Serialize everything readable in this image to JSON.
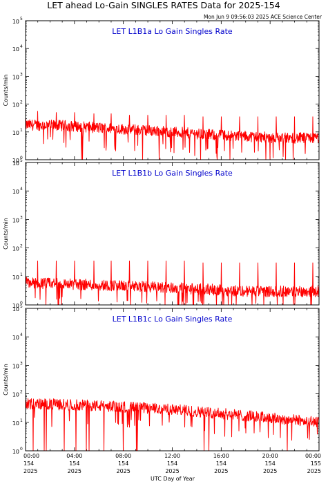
{
  "header": {
    "title": "LET ahead Lo-Gain SINGLES RATES Data for 2025-154",
    "timestamp": "Mon Jun  9 09:56:03 2025 ACE Science Center"
  },
  "colors": {
    "trace": "#ff0000",
    "panel_title": "#0000cc",
    "axes": "#000000",
    "background": "#ffffff"
  },
  "chart_data": [
    {
      "type": "line",
      "title": "LET L1B1a Lo Gain Singles Rate",
      "ylabel": "Counts/min",
      "xlabel": "",
      "yscale": "log",
      "ylim": [
        1,
        100000
      ],
      "xlim": [
        0,
        24
      ],
      "ytick_labels": [
        {
          "base": "10",
          "exp": "0"
        },
        {
          "base": "10",
          "exp": "1"
        },
        {
          "base": "10",
          "exp": "2"
        },
        {
          "base": "10",
          "exp": "3"
        },
        {
          "base": "10",
          "exp": "4"
        },
        {
          "base": "10",
          "exp": "5"
        }
      ],
      "series": [
        {
          "baseline": {
            "x": [
              0,
              3,
              6,
              9,
              12,
              15,
              18,
              21,
              24
            ],
            "y": [
              18,
              17,
              14,
              12,
              10,
              8,
              7,
              6,
              6
            ]
          },
          "spikes": {
            "x": [
              1.0,
              2.5,
              4.0,
              5.6,
              7.0,
              8.5,
              10.0,
              11.5,
              13.0,
              14.5,
              16.0,
              17.5,
              19.0,
              20.5,
              22.0,
              23.5
            ],
            "y": [
              55,
              50,
              50,
              45,
              45,
              40,
              40,
              40,
              40,
              35,
              35,
              35,
              35,
              35,
              35,
              35
            ]
          }
        }
      ]
    },
    {
      "type": "line",
      "title": "LET L1B1b Lo Gain Singles Rate",
      "ylabel": "Counts/min",
      "xlabel": "",
      "yscale": "log",
      "ylim": [
        1,
        100000
      ],
      "xlim": [
        0,
        24
      ],
      "ytick_labels": [
        {
          "base": "10",
          "exp": "0"
        },
        {
          "base": "10",
          "exp": "1"
        },
        {
          "base": "10",
          "exp": "2"
        },
        {
          "base": "10",
          "exp": "3"
        },
        {
          "base": "10",
          "exp": "4"
        },
        {
          "base": "10",
          "exp": "5"
        }
      ],
      "series": [
        {
          "baseline": {
            "x": [
              0,
              6,
              12,
              18,
              24
            ],
            "y": [
              6,
              5,
              4,
              3,
              3
            ]
          },
          "spikes": {
            "x": [
              1.0,
              2.5,
              4.0,
              5.6,
              7.0,
              8.5,
              10.0,
              11.5,
              13.0,
              14.5,
              16.0,
              17.5,
              19.0,
              20.5,
              22.0,
              23.5
            ],
            "y": [
              35,
              35,
              35,
              35,
              35,
              35,
              35,
              35,
              35,
              30,
              30,
              30,
              30,
              30,
              30,
              30
            ]
          }
        }
      ]
    },
    {
      "type": "line",
      "title": "LET L1B1c Lo Gain Singles Rate",
      "ylabel": "Counts/min",
      "xlabel": "UTC Day of Year",
      "yscale": "log",
      "ylim": [
        1,
        100000
      ],
      "xlim": [
        0,
        24
      ],
      "ytick_labels": [
        {
          "base": "10",
          "exp": "0"
        },
        {
          "base": "10",
          "exp": "1"
        },
        {
          "base": "10",
          "exp": "2"
        },
        {
          "base": "10",
          "exp": "3"
        },
        {
          "base": "10",
          "exp": "4"
        },
        {
          "base": "10",
          "exp": "5"
        }
      ],
      "xtick_labels": [
        {
          "time": "00:00",
          "day": "154",
          "year": "2025"
        },
        {
          "time": "04:00",
          "day": "154",
          "year": "2025"
        },
        {
          "time": "08:00",
          "day": "154",
          "year": "2025"
        },
        {
          "time": "12:00",
          "day": "154",
          "year": "2025"
        },
        {
          "time": "16:00",
          "day": "154",
          "year": "2025"
        },
        {
          "time": "20:00",
          "day": "154",
          "year": "2025"
        },
        {
          "time": "00:00",
          "day": "155",
          "year": "2025"
        }
      ],
      "series": [
        {
          "baseline": {
            "x": [
              0,
              3,
              6,
              9,
              12,
              15,
              18,
              21,
              24
            ],
            "y": [
              45,
              42,
              38,
              33,
              28,
              22,
              17,
              13,
              10
            ]
          },
          "spikes": {
            "x": [],
            "y": []
          }
        }
      ]
    }
  ]
}
